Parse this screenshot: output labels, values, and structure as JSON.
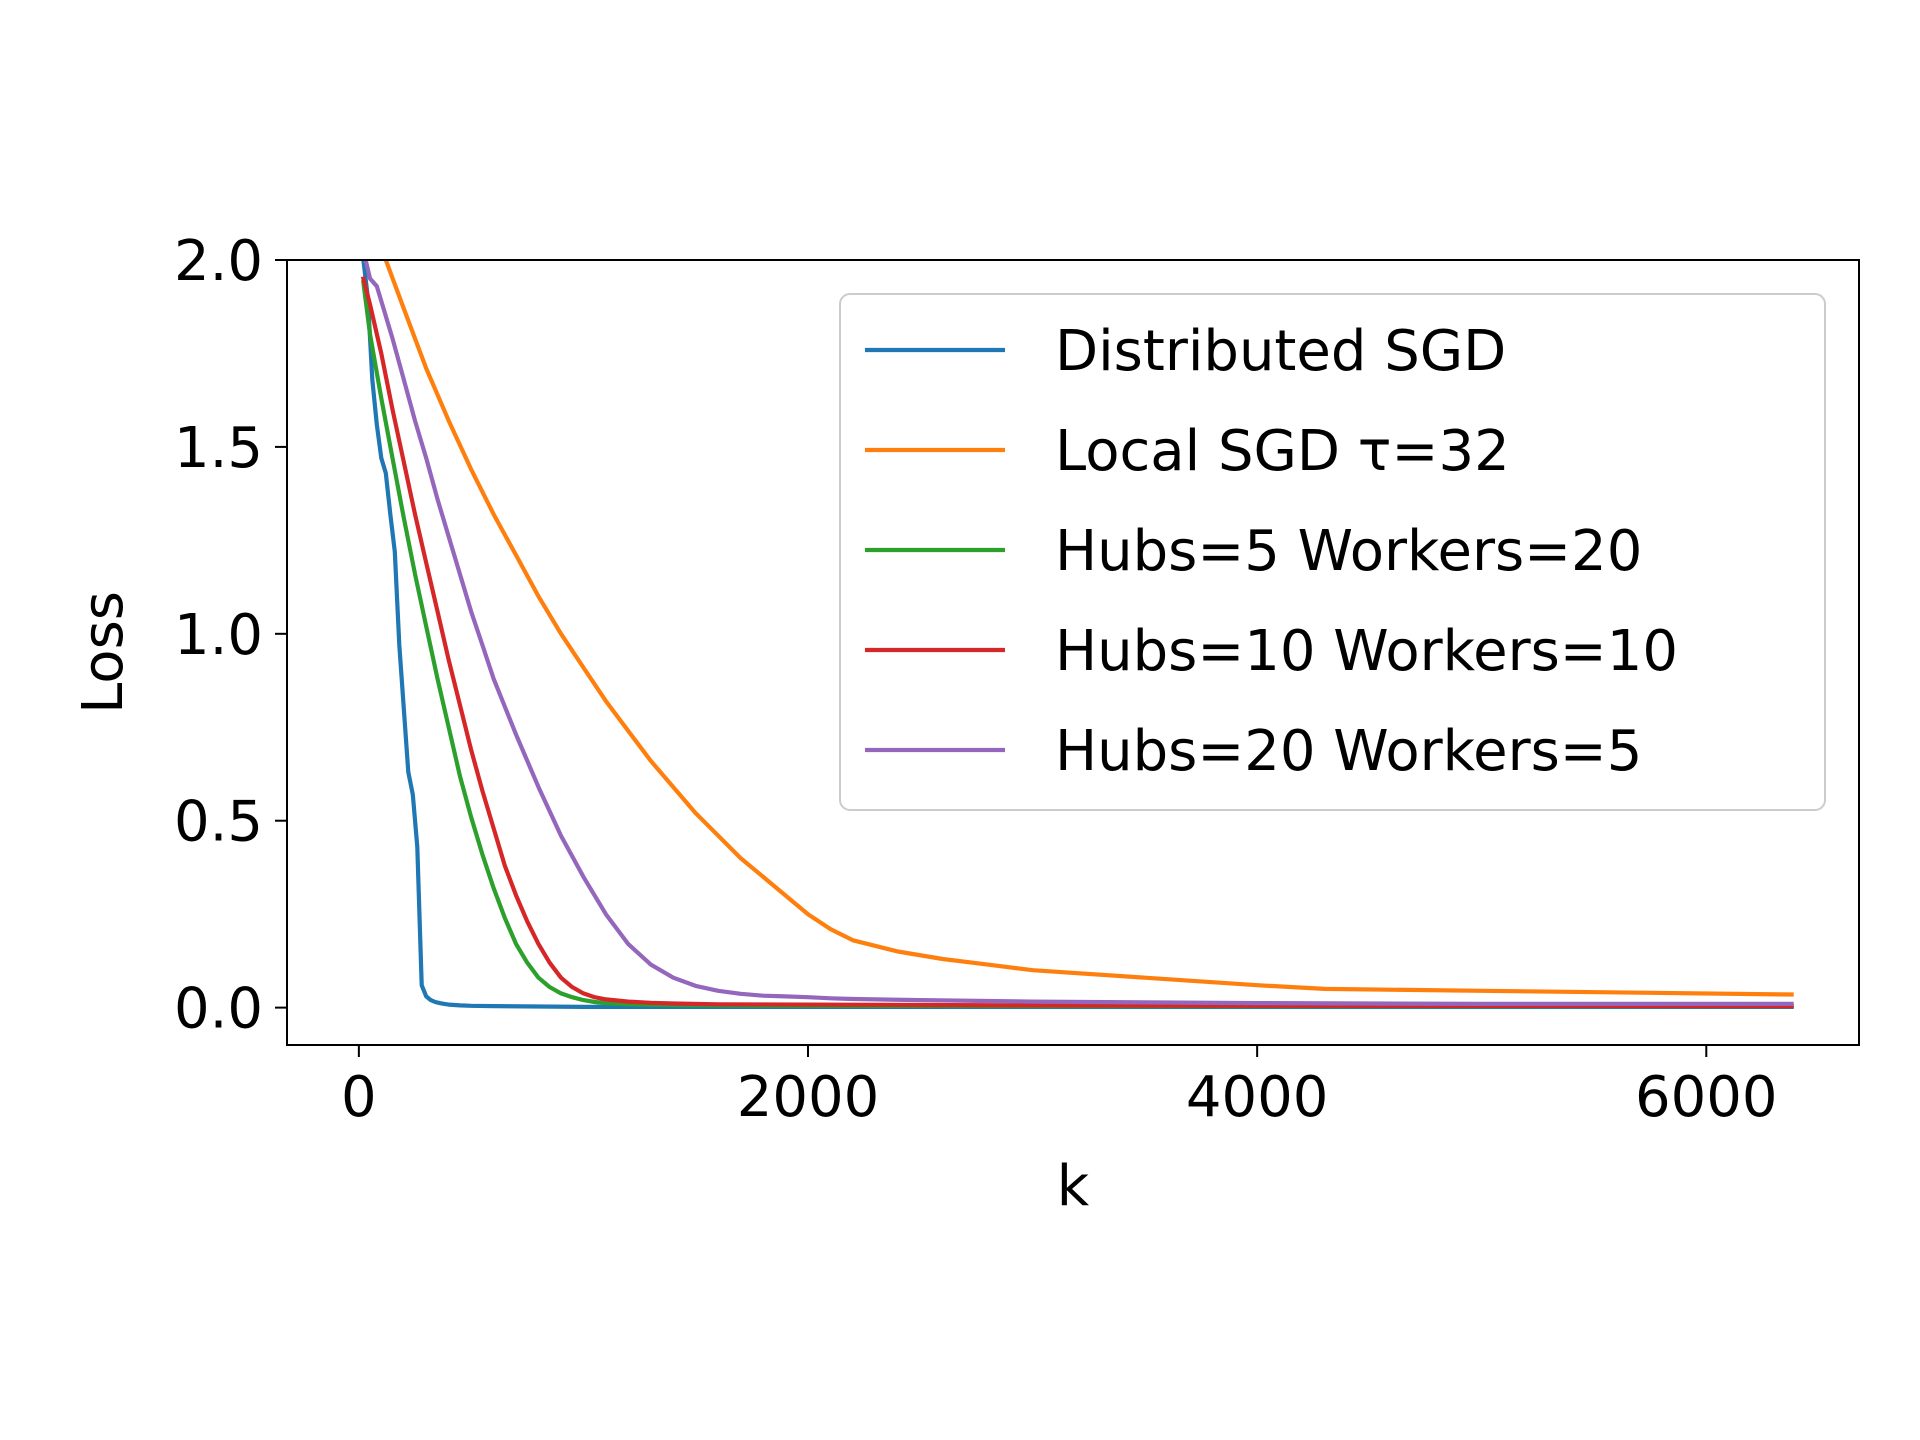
{
  "chart_data": {
    "type": "line",
    "title": "",
    "xlabel": "k",
    "ylabel": "Loss",
    "xlim": [
      -320,
      6680
    ],
    "ylim": [
      -0.1,
      2.0
    ],
    "xticks": [
      0,
      2000,
      4000,
      6000
    ],
    "xtick_labels": [
      "0",
      "2000",
      "4000",
      "6000"
    ],
    "yticks": [
      0.0,
      0.5,
      1.0,
      1.5,
      2.0
    ],
    "ytick_labels": [
      "0.0",
      "0.5",
      "1.0",
      "1.5",
      "2.0"
    ],
    "grid": false,
    "legend_position": "top-right",
    "series": [
      {
        "name": "Distributed SGD",
        "color": "#1f77b4",
        "x": [
          20,
          40,
          60,
          80,
          100,
          120,
          140,
          160,
          180,
          200,
          220,
          240,
          260,
          280,
          300,
          320,
          340,
          360,
          380,
          400,
          450,
          500,
          600,
          800,
          1000,
          1500,
          2000,
          3000,
          4000,
          5000,
          6380
        ],
        "y": [
          2.0,
          1.9,
          1.68,
          1.56,
          1.47,
          1.43,
          1.32,
          1.22,
          0.97,
          0.8,
          0.63,
          0.57,
          0.43,
          0.06,
          0.03,
          0.02,
          0.015,
          0.012,
          0.01,
          0.008,
          0.006,
          0.005,
          0.004,
          0.003,
          0.002,
          0.002,
          0.002,
          0.002,
          0.002,
          0.002,
          0.002
        ]
      },
      {
        "name": "Local SGD τ=32",
        "color": "#ff7f0e",
        "x": [
          120,
          200,
          300,
          400,
          500,
          600,
          700,
          800,
          900,
          1000,
          1100,
          1200,
          1300,
          1400,
          1500,
          1600,
          1700,
          1800,
          1900,
          2000,
          2100,
          2200,
          2400,
          2600,
          2800,
          3000,
          3500,
          4000,
          4300,
          5000,
          6380
        ],
        "y": [
          2.0,
          1.87,
          1.71,
          1.57,
          1.44,
          1.32,
          1.21,
          1.1,
          1.0,
          0.91,
          0.82,
          0.74,
          0.66,
          0.59,
          0.52,
          0.46,
          0.4,
          0.35,
          0.3,
          0.25,
          0.21,
          0.18,
          0.15,
          0.13,
          0.115,
          0.1,
          0.08,
          0.06,
          0.05,
          0.045,
          0.035
        ]
      },
      {
        "name": "Hubs=5 Workers=20",
        "color": "#2ca02c",
        "x": [
          20,
          50,
          100,
          150,
          200,
          250,
          300,
          350,
          400,
          450,
          500,
          550,
          600,
          650,
          700,
          750,
          800,
          850,
          900,
          950,
          1000,
          1050,
          1100,
          1200,
          1400,
          1600,
          2000,
          3000,
          4000,
          5000,
          6380
        ],
        "y": [
          1.94,
          1.8,
          1.63,
          1.47,
          1.31,
          1.16,
          1.02,
          0.88,
          0.75,
          0.62,
          0.51,
          0.41,
          0.32,
          0.24,
          0.17,
          0.12,
          0.08,
          0.055,
          0.038,
          0.028,
          0.02,
          0.015,
          0.012,
          0.009,
          0.007,
          0.006,
          0.005,
          0.004,
          0.004,
          0.004,
          0.004
        ]
      },
      {
        "name": "Hubs=10 Workers=10",
        "color": "#d62728",
        "x": [
          20,
          50,
          100,
          150,
          200,
          250,
          300,
          350,
          400,
          450,
          500,
          550,
          600,
          650,
          700,
          750,
          800,
          850,
          900,
          950,
          1000,
          1050,
          1100,
          1200,
          1300,
          1400,
          1600,
          2000,
          3000,
          4000,
          6380
        ],
        "y": [
          1.95,
          1.88,
          1.75,
          1.6,
          1.46,
          1.32,
          1.19,
          1.06,
          0.93,
          0.81,
          0.69,
          0.58,
          0.48,
          0.38,
          0.3,
          0.23,
          0.17,
          0.12,
          0.08,
          0.055,
          0.038,
          0.028,
          0.022,
          0.016,
          0.013,
          0.011,
          0.009,
          0.008,
          0.006,
          0.005,
          0.004
        ]
      },
      {
        "name": "Hubs=20 Workers=5",
        "color": "#9467bd",
        "x": [
          30,
          50,
          80,
          100,
          150,
          200,
          250,
          300,
          350,
          400,
          450,
          500,
          550,
          600,
          700,
          800,
          900,
          1000,
          1100,
          1200,
          1300,
          1400,
          1500,
          1600,
          1700,
          1800,
          1900,
          2000,
          2100,
          2200,
          2500,
          3000,
          4000,
          5000,
          6380
        ],
        "y": [
          2.0,
          1.95,
          1.93,
          1.89,
          1.79,
          1.68,
          1.57,
          1.47,
          1.36,
          1.26,
          1.16,
          1.06,
          0.97,
          0.88,
          0.73,
          0.59,
          0.46,
          0.35,
          0.25,
          0.17,
          0.115,
          0.08,
          0.058,
          0.045,
          0.037,
          0.032,
          0.03,
          0.028,
          0.025,
          0.023,
          0.02,
          0.016,
          0.012,
          0.01,
          0.01
        ]
      }
    ]
  }
}
